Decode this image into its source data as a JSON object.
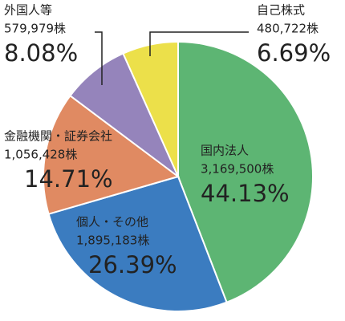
{
  "chart_data": {
    "type": "pie",
    "categories": [
      "国内法人",
      "個人・その他",
      "金融機関・証券会社",
      "外国人等",
      "自己株式"
    ],
    "values": [
      44.13,
      26.39,
      14.71,
      8.08,
      6.69
    ],
    "value_labels": [
      "44.13%",
      "26.39%",
      "14.71%",
      "8.08%",
      "6.69%"
    ],
    "share_labels": [
      "3,169,500株",
      "1,895,183株",
      "1,056,428株",
      "579,979株",
      "480,722株"
    ],
    "colors": [
      "#5db573",
      "#3b7cc0",
      "#e08a62",
      "#9584bb",
      "#ece04a"
    ]
  }
}
